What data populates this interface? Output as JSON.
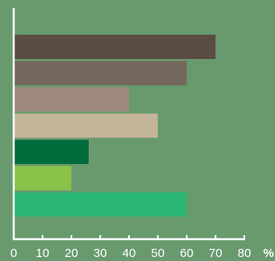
{
  "chart_data": {
    "type": "bar",
    "orientation": "horizontal",
    "title": "",
    "xlabel": "",
    "ylabel": "",
    "x_unit": "%",
    "xlim": [
      0,
      80
    ],
    "x_ticks": [
      "0",
      "10",
      "20",
      "30",
      "40",
      "50",
      "60",
      "70",
      "80"
    ],
    "grid": false,
    "legend": "none",
    "bars": [
      {
        "value": 70,
        "color": "#5a4b43"
      },
      {
        "value": 60,
        "color": "#75675b"
      },
      {
        "value": 40,
        "color": "#9e8a7c"
      },
      {
        "value": 50,
        "color": "#c3b49a"
      },
      {
        "value": 26,
        "color": "#006c3b"
      },
      {
        "value": 20,
        "color": "#8bc34a"
      },
      {
        "value": 60,
        "color": "#2bb673"
      }
    ]
  },
  "colors": {
    "background": "#689a6e",
    "axis": "#ffffff",
    "text": "#ffffff"
  }
}
